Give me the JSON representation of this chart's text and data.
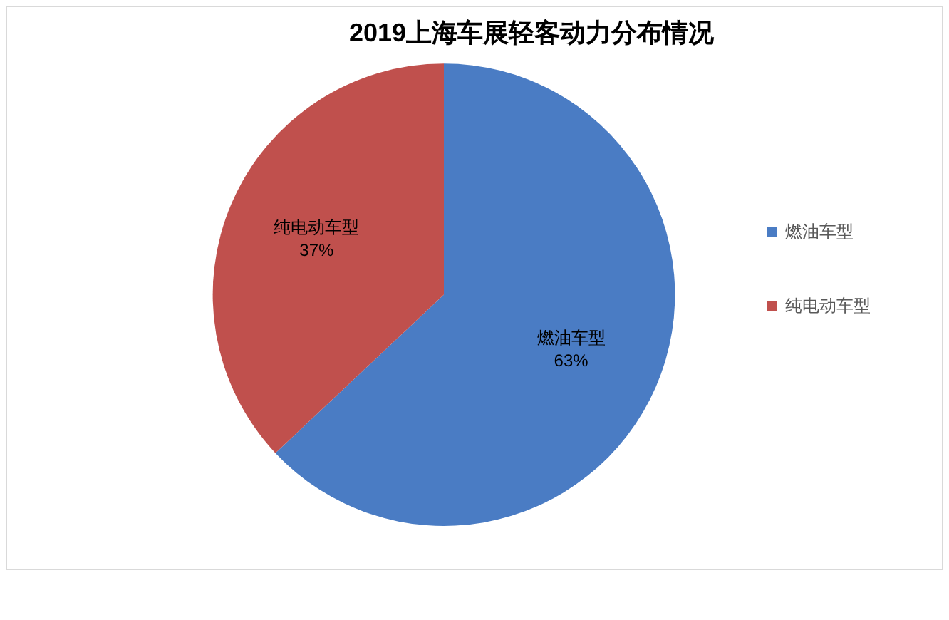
{
  "chart_data": {
    "type": "pie",
    "title": "2019上海车展轻客动力分布情况",
    "categories": [
      "燃油车型",
      "纯电动车型"
    ],
    "values": [
      63,
      37
    ],
    "value_labels": [
      "63%",
      "37%"
    ],
    "colors": [
      "#4a7cc4",
      "#c0504d"
    ],
    "legend": "right"
  }
}
